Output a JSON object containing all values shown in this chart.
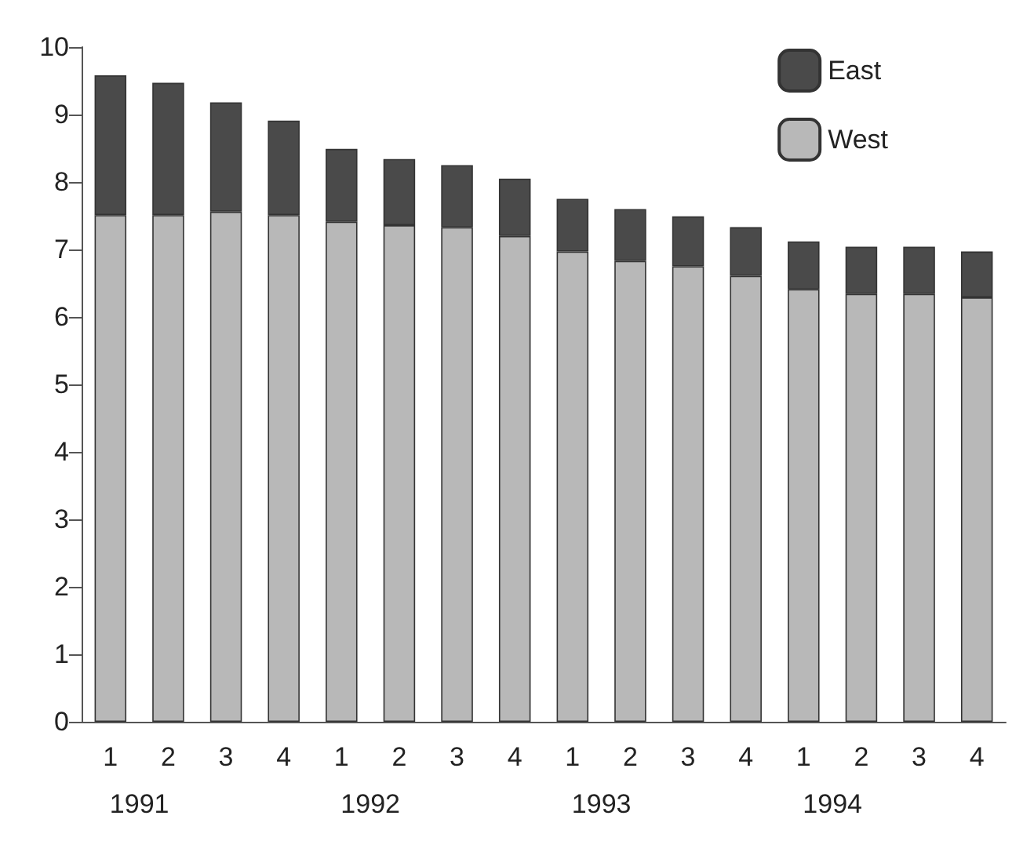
{
  "chart_data": {
    "type": "bar",
    "stacked": true,
    "categories": [
      "1",
      "2",
      "3",
      "4",
      "1",
      "2",
      "3",
      "4",
      "1",
      "2",
      "3",
      "4",
      "1",
      "2",
      "3",
      "4"
    ],
    "annotations": [
      "1991",
      "1992",
      "1993",
      "1994"
    ],
    "series": [
      {
        "name": "West",
        "color": "#b8b8b8",
        "values": [
          7.51,
          7.51,
          7.56,
          7.51,
          7.41,
          7.36,
          7.33,
          7.2,
          6.97,
          6.83,
          6.75,
          6.61,
          6.41,
          6.34,
          6.34,
          6.29
        ]
      },
      {
        "name": "East",
        "color": "#4a4a4a",
        "values": [
          2.07,
          1.96,
          1.62,
          1.4,
          1.08,
          0.98,
          0.92,
          0.85,
          0.78,
          0.77,
          0.74,
          0.72,
          0.71,
          0.7,
          0.7,
          0.68
        ]
      }
    ],
    "ylim": [
      0,
      10
    ],
    "yticks": [
      0,
      1,
      2,
      3,
      4,
      5,
      6,
      7,
      8,
      9,
      10
    ],
    "grid": false,
    "legend": "top right"
  }
}
